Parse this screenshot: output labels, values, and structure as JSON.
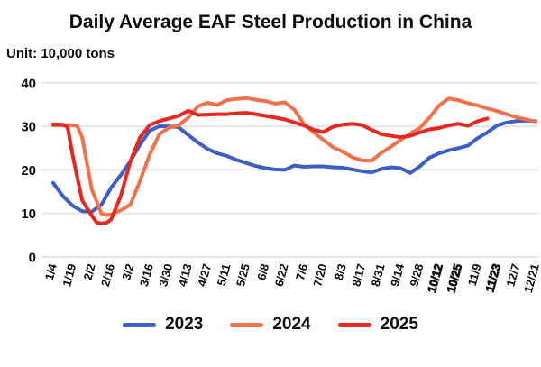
{
  "title": "Daily Average EAF Steel Production in China",
  "unit_label": "Unit: 10,000 tons",
  "chart_data": {
    "type": "line",
    "title": "Daily Average EAF Steel Production in China",
    "unit": "10,000 tons",
    "grid": "horizontal",
    "legend_position": "bottom",
    "y_axis": {
      "min": 0,
      "max": 40,
      "step": 10,
      "tick_labels": [
        "0",
        "10",
        "20",
        "30",
        "40"
      ]
    },
    "categories": [
      "1/4",
      "1/19",
      "2/2",
      "2/16",
      "3/2",
      "3/16",
      "3/30",
      "4/13",
      "4/27",
      "5/11",
      "5/25",
      "6/8",
      "6/22",
      "7/6",
      "7/20",
      "8/3",
      "8/17",
      "8/31",
      "9/14",
      "9/28",
      "10/12",
      "10/25",
      "11/9",
      "11/23",
      "12/7",
      "12/21"
    ],
    "bold_labels": [
      "10/12",
      "10/25",
      "11/23"
    ],
    "x_unit": "category_index (0 = 1/4; fractional values are weekly points between labeled ticks)",
    "series": [
      {
        "name": "2023",
        "color": "#3d5ec7",
        "points": [
          [
            0,
            17
          ],
          [
            0.5,
            14
          ],
          [
            1,
            11.8
          ],
          [
            1.5,
            10.5
          ],
          [
            2,
            10.4
          ],
          [
            2.5,
            12
          ],
          [
            3,
            15.9
          ],
          [
            3.5,
            18.8
          ],
          [
            4,
            22
          ],
          [
            4.5,
            25.8
          ],
          [
            5,
            29
          ],
          [
            5.5,
            30
          ],
          [
            6,
            30
          ],
          [
            6.5,
            29.8
          ],
          [
            7,
            28
          ],
          [
            7.5,
            26.3
          ],
          [
            8,
            24.8
          ],
          [
            8.5,
            23.8
          ],
          [
            9,
            23.2
          ],
          [
            9.5,
            22.3
          ],
          [
            10,
            21.6
          ],
          [
            10.5,
            20.9
          ],
          [
            11,
            20.4
          ],
          [
            11.5,
            20.1
          ],
          [
            12,
            20
          ],
          [
            12.5,
            21
          ],
          [
            13,
            20.7
          ],
          [
            13.5,
            20.8
          ],
          [
            14,
            20.8
          ],
          [
            14.5,
            20.6
          ],
          [
            15,
            20.5
          ],
          [
            15.5,
            20.1
          ],
          [
            16,
            19.7
          ],
          [
            16.5,
            19.4
          ],
          [
            17,
            20.2
          ],
          [
            17.5,
            20.6
          ],
          [
            18,
            20.4
          ],
          [
            18.5,
            19.3
          ],
          [
            19,
            20.8
          ],
          [
            19.5,
            22.8
          ],
          [
            20,
            23.8
          ],
          [
            20.5,
            24.5
          ],
          [
            21,
            25
          ],
          [
            21.5,
            25.6
          ],
          [
            22,
            27.3
          ],
          [
            22.5,
            28.6
          ],
          [
            23,
            30.2
          ],
          [
            23.5,
            30.9
          ],
          [
            24,
            31.2
          ],
          [
            24.5,
            31.3
          ],
          [
            25,
            31.2
          ]
        ]
      },
      {
        "name": "2024",
        "color": "#f2704a",
        "points": [
          [
            0,
            30.2
          ],
          [
            0.5,
            30.3
          ],
          [
            1,
            30.3
          ],
          [
            1.25,
            30
          ],
          [
            1.5,
            27.5
          ],
          [
            2,
            15.5
          ],
          [
            2.5,
            10
          ],
          [
            2.75,
            9.6
          ],
          [
            3,
            9.8
          ],
          [
            3.5,
            10.7
          ],
          [
            4,
            12
          ],
          [
            4.5,
            17.5
          ],
          [
            5,
            23.5
          ],
          [
            5.5,
            28.2
          ],
          [
            6,
            29.7
          ],
          [
            6.5,
            30.2
          ],
          [
            7,
            32
          ],
          [
            7.5,
            34.6
          ],
          [
            8,
            35.4
          ],
          [
            8.5,
            34.9
          ],
          [
            9,
            36
          ],
          [
            9.5,
            36.3
          ],
          [
            10,
            36.5
          ],
          [
            10.5,
            36.1
          ],
          [
            11,
            35.8
          ],
          [
            11.5,
            35.2
          ],
          [
            12,
            35.5
          ],
          [
            12.5,
            33.8
          ],
          [
            13,
            30.5
          ],
          [
            13.5,
            28.6
          ],
          [
            14,
            26.9
          ],
          [
            14.5,
            25.2
          ],
          [
            15,
            24.2
          ],
          [
            15.5,
            22.9
          ],
          [
            16,
            22.2
          ],
          [
            16.5,
            22.1
          ],
          [
            17,
            23.9
          ],
          [
            17.5,
            25.3
          ],
          [
            18,
            26.9
          ],
          [
            18.5,
            28.3
          ],
          [
            19,
            29.6
          ],
          [
            19.5,
            32
          ],
          [
            20,
            34.8
          ],
          [
            20.5,
            36.4
          ],
          [
            21,
            36
          ],
          [
            21.5,
            35.3
          ],
          [
            22,
            34.8
          ],
          [
            22.5,
            34.1
          ],
          [
            23,
            33.5
          ],
          [
            23.5,
            32.8
          ],
          [
            24,
            32.1
          ],
          [
            24.5,
            31.6
          ],
          [
            25,
            31.1
          ]
        ]
      },
      {
        "name": "2025",
        "color": "#e8281e",
        "points": [
          [
            0,
            30.5
          ],
          [
            0.5,
            30.4
          ],
          [
            0.75,
            29.8
          ],
          [
            1,
            23.5
          ],
          [
            1.5,
            13
          ],
          [
            2,
            9.5
          ],
          [
            2.25,
            7.9
          ],
          [
            2.5,
            7.7
          ],
          [
            2.75,
            7.8
          ],
          [
            3,
            8.6
          ],
          [
            3.5,
            14
          ],
          [
            4,
            22
          ],
          [
            4.5,
            27.5
          ],
          [
            5,
            30.3
          ],
          [
            5.5,
            31.2
          ],
          [
            6,
            31.8
          ],
          [
            6.5,
            32.4
          ],
          [
            7,
            33.6
          ],
          [
            7.5,
            32.6
          ],
          [
            8,
            32.7
          ],
          [
            8.5,
            32.8
          ],
          [
            9,
            32.8
          ],
          [
            9.5,
            33
          ],
          [
            10,
            33.1
          ],
          [
            10.5,
            32.8
          ],
          [
            11,
            32.4
          ],
          [
            11.5,
            32
          ],
          [
            12,
            31.6
          ],
          [
            12.5,
            30.9
          ],
          [
            13,
            30.2
          ],
          [
            13.5,
            29.2
          ],
          [
            14,
            28.7
          ],
          [
            14.5,
            29.9
          ],
          [
            15,
            30.4
          ],
          [
            15.5,
            30.6
          ],
          [
            16,
            30.3
          ],
          [
            16.5,
            29.2
          ],
          [
            17,
            28.2
          ],
          [
            17.5,
            27.8
          ],
          [
            18,
            27.5
          ],
          [
            18.5,
            27.8
          ],
          [
            19,
            28.6
          ],
          [
            19.5,
            29.3
          ],
          [
            20,
            29.6
          ],
          [
            20.5,
            30.2
          ],
          [
            21,
            30.6
          ],
          [
            21.5,
            30.1
          ],
          [
            22,
            31.2
          ],
          [
            22.5,
            31.8
          ]
        ]
      }
    ]
  }
}
